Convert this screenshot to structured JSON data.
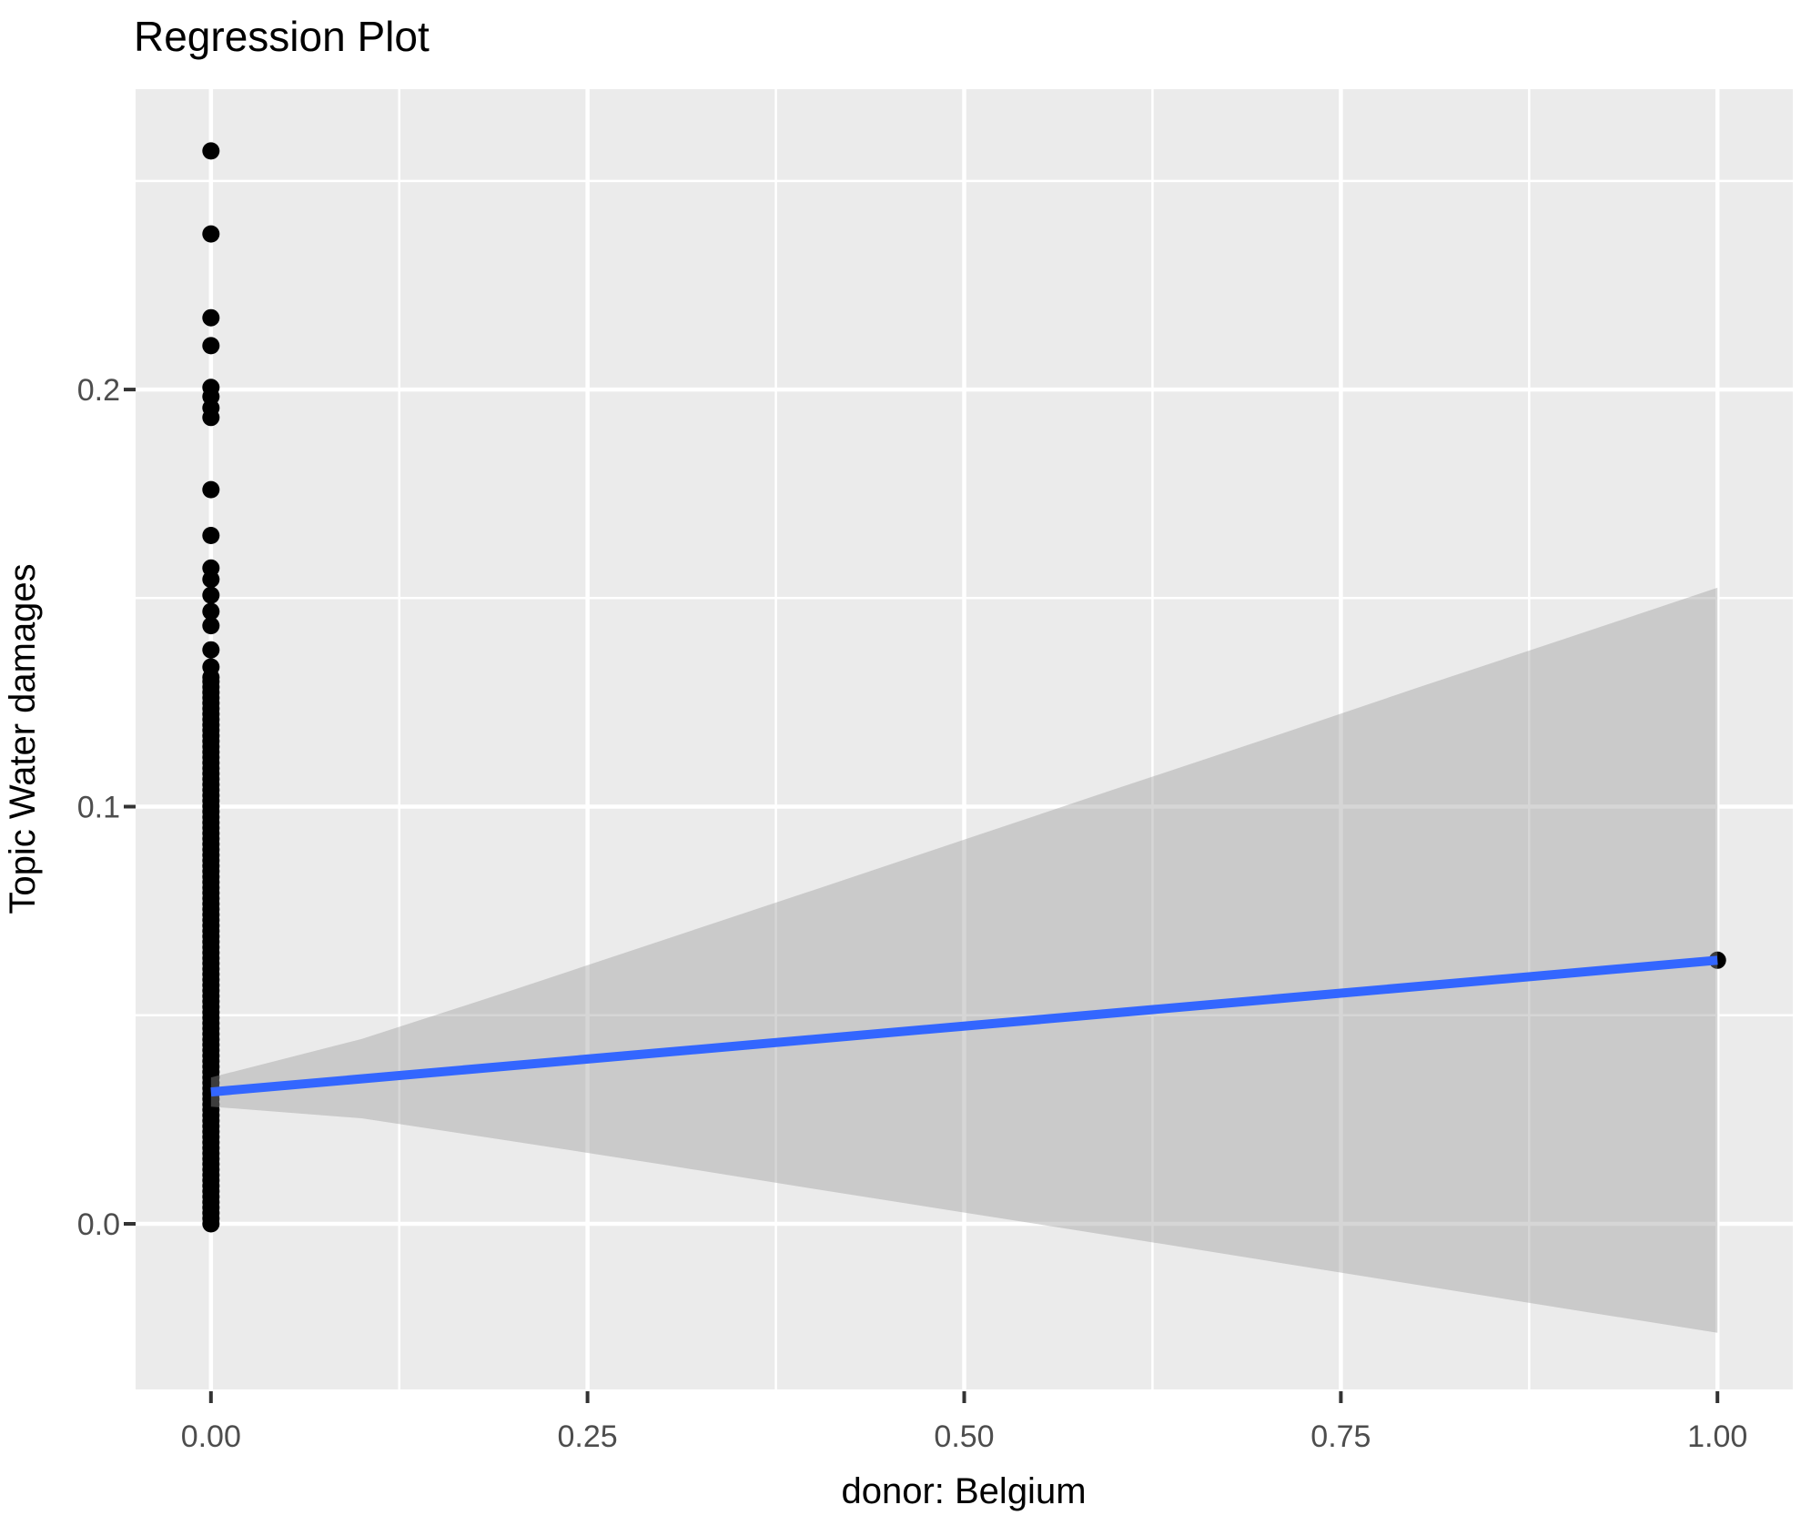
{
  "chart_data": {
    "type": "scatter",
    "title": "Regression Plot",
    "xlabel": "donor: Belgium",
    "ylabel": "Topic Water damages",
    "xlim": [
      -0.05,
      1.05
    ],
    "ylim": [
      -0.0397,
      0.272
    ],
    "grid": true,
    "legend_position": "none",
    "x_ticks": {
      "values": [
        0.0,
        0.25,
        0.5,
        0.75,
        1.0
      ],
      "labels": [
        "0.00",
        "0.25",
        "0.50",
        "0.75",
        "1.00"
      ]
    },
    "y_ticks": {
      "values": [
        0.0,
        0.1,
        0.2
      ],
      "labels": [
        "0.0",
        "0.1",
        "0.2"
      ]
    },
    "x_minor_gridlines": [
      0.125,
      0.375,
      0.625,
      0.875
    ],
    "y_minor_gridlines": [
      0.05,
      0.15,
      0.25
    ],
    "scatter": {
      "x0_column": {
        "x": 0,
        "distinct_y": [
          0.2572,
          0.2373,
          0.2172,
          0.2105,
          0.2005,
          0.1983,
          0.1956,
          0.1933,
          0.176,
          0.165,
          0.1572,
          0.1545,
          0.1507,
          0.1468,
          0.1434,
          0.1376,
          0.1335,
          0.131
        ],
        "dense_y_range": {
          "min": 0.0,
          "max": 0.13,
          "step": 0.0013
        }
      },
      "x1_point": {
        "x": 1.0,
        "y": 0.0632
      }
    },
    "regression_line": {
      "x": [
        0.0,
        1.0
      ],
      "y": [
        0.0316,
        0.0632
      ],
      "color": "#3366FF"
    },
    "confidence_band": {
      "x": [
        0.0,
        0.1,
        0.2,
        0.3,
        0.4,
        0.5,
        0.6,
        0.7,
        0.8,
        0.9,
        1.0
      ],
      "upper": [
        0.0351,
        0.0443,
        0.056,
        0.068,
        0.08,
        0.0921,
        0.1042,
        0.1162,
        0.1284,
        0.1404,
        0.1525
      ],
      "lower": [
        0.0281,
        0.0253,
        0.0198,
        0.0142,
        0.0084,
        0.0027,
        -0.003,
        -0.0088,
        -0.0146,
        -0.0204,
        -0.0261
      ],
      "color": "rgba(153,153,153,0.40)"
    },
    "colors": {
      "panel_background": "#EBEBEB",
      "gridline": "#FFFFFF",
      "point": "#000000",
      "smooth_line": "#3366FF",
      "tick_mark": "#333333",
      "tick_label": "#4D4D4D",
      "title": "#000000"
    }
  }
}
